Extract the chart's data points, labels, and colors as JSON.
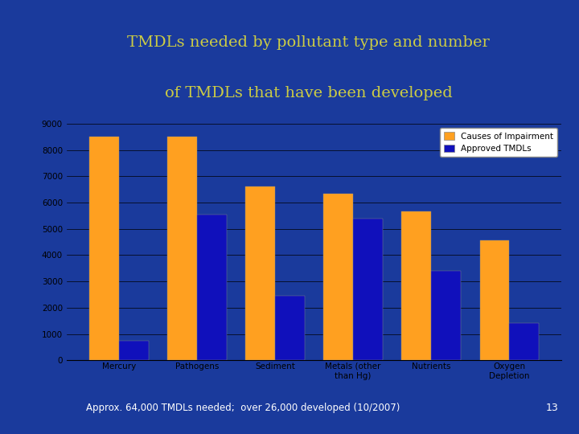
{
  "title_line1": "TMDLs needed by pollutant type and number",
  "title_line2": "of TMDLs that have been developed",
  "title_color": "#CCCC44",
  "background_color": "#1A3A9C",
  "slide_bg_color": "#1A3A9C",
  "orange_strip_color": "#F7941D",
  "chart_bg_color": "#FFFFFF",
  "categories": [
    "Mercury",
    "Pathogens",
    "Sediment",
    "Metals (other\nthan Hg)",
    "Nutrients",
    "Oxygen\nDepletion"
  ],
  "causes_values": [
    8500,
    8500,
    6600,
    6350,
    5650,
    4550
  ],
  "tmdls_values": [
    750,
    5550,
    2450,
    5400,
    3400,
    1400
  ],
  "causes_color": "#FFA020",
  "tmdls_color": "#1010BB",
  "legend_causes": "Causes of Impairment",
  "legend_tmdls": "Approved TMDLs",
  "ylim": [
    0,
    9000
  ],
  "yticks": [
    0,
    1000,
    2000,
    3000,
    4000,
    5000,
    6000,
    7000,
    8000,
    9000
  ],
  "footer_text": "Approx. 64,000 TMDLs needed;  over 26,000 developed (10/2007)",
  "footer_color": "#FFFFFF",
  "slide_number": "13",
  "slide_number_color": "#FFFFFF",
  "title_fontsize": 14,
  "tick_fontsize": 7.5,
  "legend_fontsize": 7.5
}
